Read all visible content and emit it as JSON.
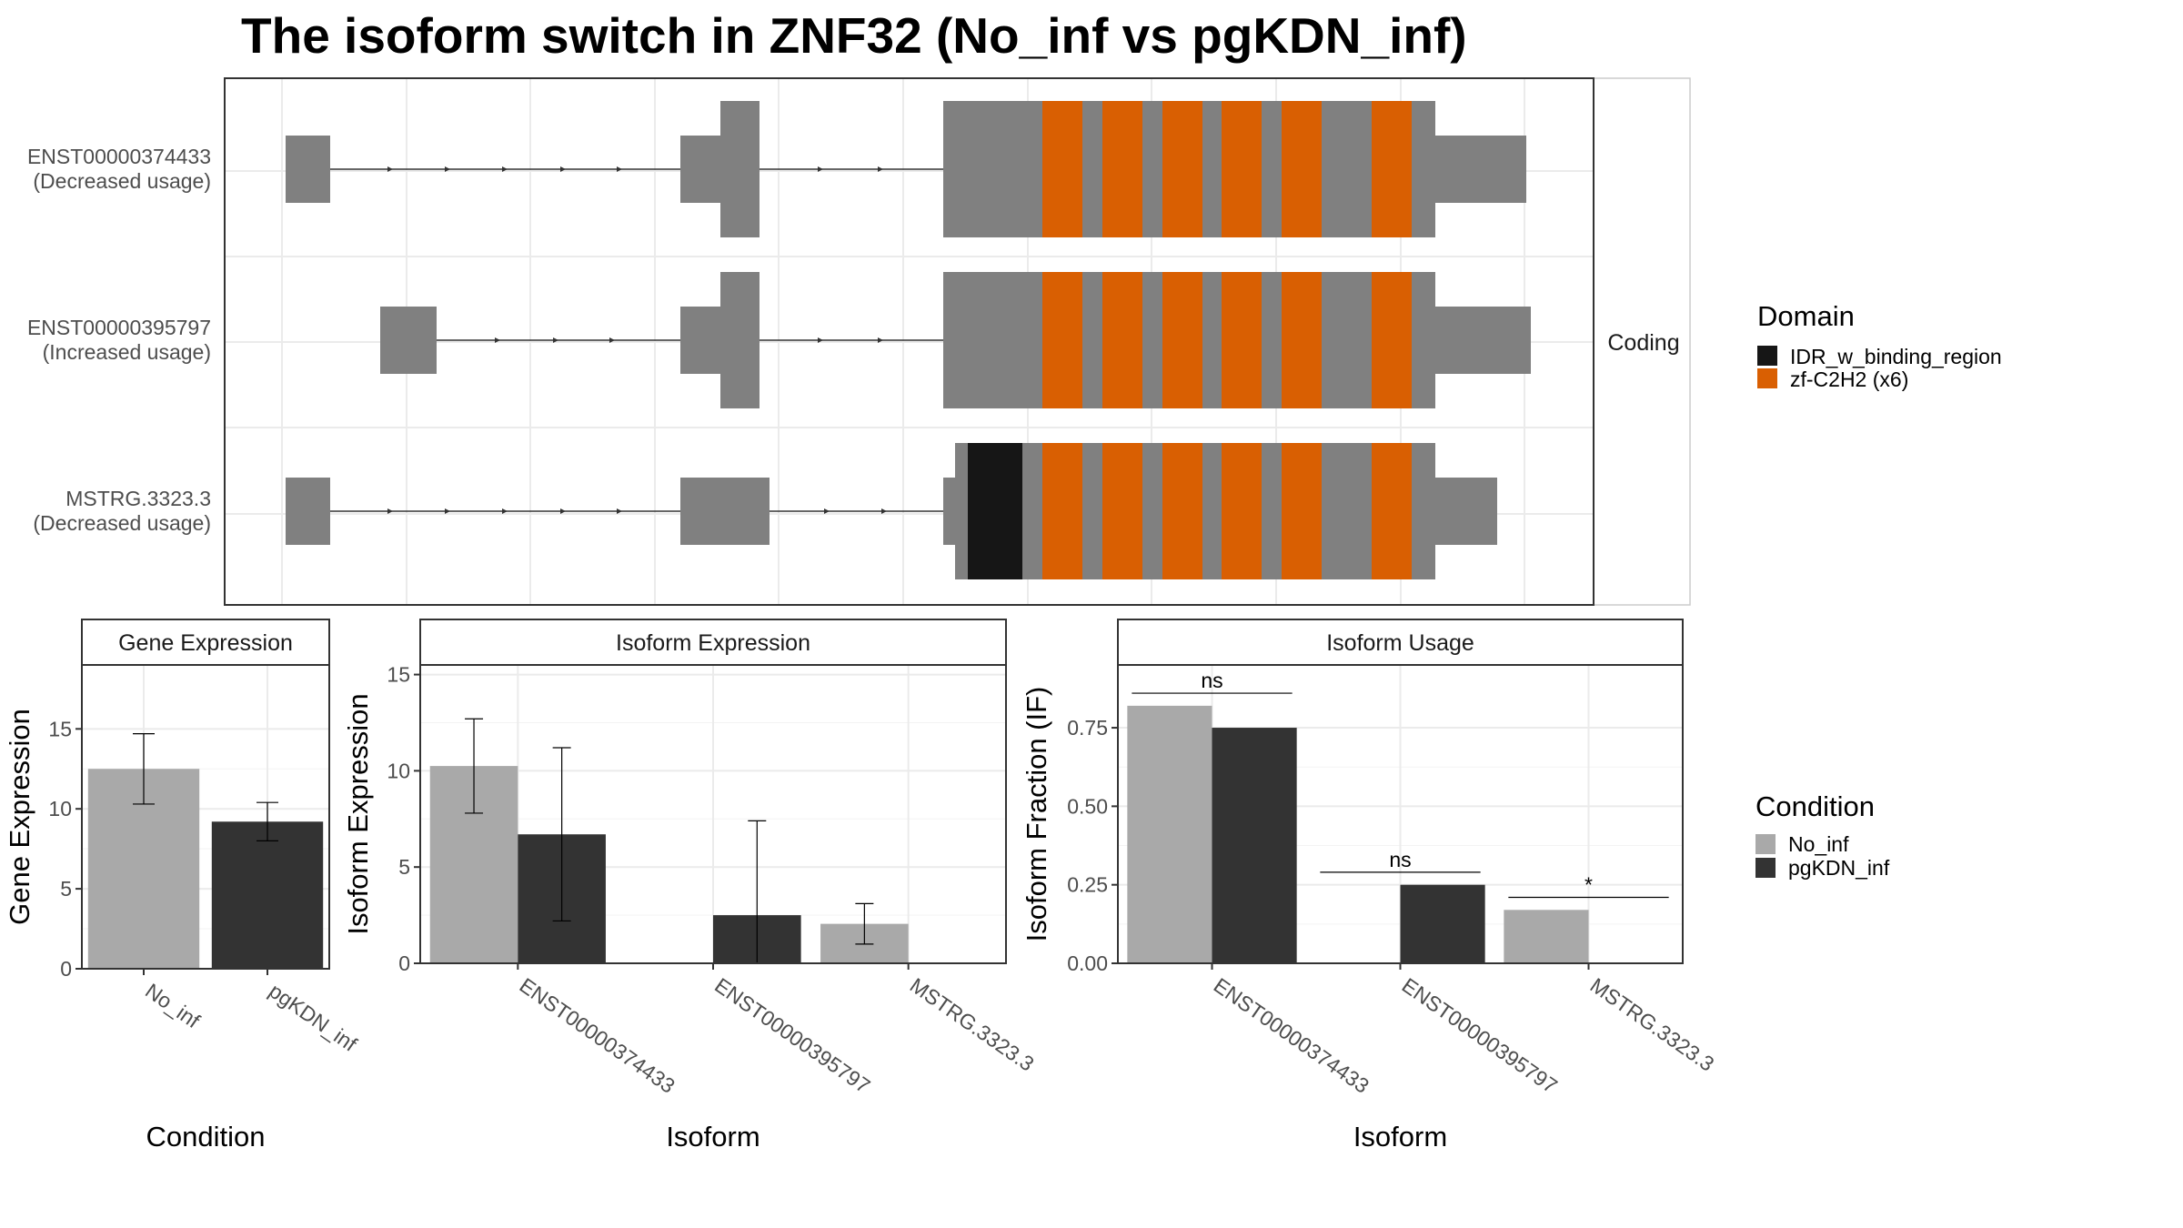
{
  "title": "The isoform switch in ZNF32 (No_inf vs pgKDN_inf)",
  "colors": {
    "No_inf": "#A9A9A9",
    "pgKDN_inf": "#333333",
    "exon": "#808080",
    "IDR_w_binding_region": "#161616",
    "zf_C2H2": "#D95F02",
    "grid": "#EBEBEB",
    "strip_bg": "#FFFFFF",
    "panel_border": "#333333"
  },
  "transcript_panel": {
    "facet_label": "Coding",
    "transcripts": [
      {
        "id": "ENST00000374433",
        "usage": "(Decreased usage)"
      },
      {
        "id": "ENST00000395797",
        "usage": "(Increased usage)"
      },
      {
        "id": "MSTRG.3323.3",
        "usage": "(Decreased usage)"
      }
    ]
  },
  "domain_legend": {
    "title": "Domain",
    "items": [
      {
        "label": "IDR_w_binding_region",
        "color": "#161616"
      },
      {
        "label": "zf-C2H2 (x6)",
        "color": "#D95F02"
      }
    ]
  },
  "condition_legend": {
    "title": "Condition",
    "items": [
      {
        "label": "No_inf",
        "color": "#A9A9A9"
      },
      {
        "label": "pgKDN_inf",
        "color": "#333333"
      }
    ]
  },
  "chart_data": [
    {
      "type": "bar",
      "panel": "Gene Expression",
      "strip": "Gene Expression",
      "categories": [
        "No_inf",
        "pgKDN_inf"
      ],
      "values": [
        12.5,
        9.2
      ],
      "error_low": [
        10.3,
        8.0
      ],
      "error_high": [
        14.7,
        10.4
      ],
      "xlabel": "Condition",
      "ylabel": "Gene Expression",
      "ylim": [
        0,
        19
      ],
      "yticks": [
        0,
        5,
        10,
        15
      ]
    },
    {
      "type": "bar",
      "panel": "Isoform Expression",
      "strip": "Isoform Expression",
      "categories": [
        "ENST00000374433",
        "ENST00000395797",
        "MSTRG.3323.3"
      ],
      "series": [
        {
          "name": "No_inf",
          "values": [
            10.25,
            0.0,
            2.05
          ],
          "error_low": [
            7.8,
            0.0,
            1.0
          ],
          "error_high": [
            12.7,
            0.0,
            3.1
          ]
        },
        {
          "name": "pgKDN_inf",
          "values": [
            6.7,
            2.5,
            0.0
          ],
          "error_low": [
            2.2,
            0.0,
            0.0
          ],
          "error_high": [
            11.2,
            7.4,
            0.0
          ]
        }
      ],
      "xlabel": "Isoform",
      "ylabel": "Isoform Expression",
      "ylim": [
        0,
        15.5
      ],
      "yticks": [
        0,
        5,
        10,
        15
      ]
    },
    {
      "type": "bar",
      "panel": "Isoform Usage",
      "strip": "Isoform Usage",
      "categories": [
        "ENST00000374433",
        "ENST00000395797",
        "MSTRG.3323.3"
      ],
      "series": [
        {
          "name": "No_inf",
          "values": [
            0.82,
            0.0,
            0.17
          ]
        },
        {
          "name": "pgKDN_inf",
          "values": [
            0.75,
            0.25,
            0.0
          ]
        }
      ],
      "significance": [
        "ns",
        "ns",
        "*"
      ],
      "significance_height": [
        0.86,
        0.29,
        0.21
      ],
      "xlabel": "Isoform",
      "ylabel": "Isoform Fraction (IF)",
      "ylim": [
        0,
        0.95
      ],
      "yticks": [
        0.0,
        0.25,
        0.5,
        0.75
      ],
      "ytick_labels": [
        "0.00",
        "0.25",
        "0.50",
        "0.75"
      ]
    }
  ]
}
